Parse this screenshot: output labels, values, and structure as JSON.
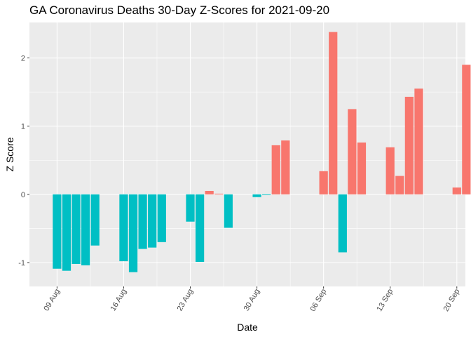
{
  "chart_data": {
    "type": "bar",
    "title": "GA Coronavirus Deaths 30-Day Z-Scores for 2021-09-20",
    "xlabel": "Date",
    "ylabel": "Z Score",
    "ylim": [
      -1.35,
      2.52
    ],
    "yticks": [
      -1,
      0,
      1,
      2
    ],
    "ytick_labels": [
      "-1",
      "0",
      "1",
      "2"
    ],
    "xlim_days": [
      -2.9,
      42.9
    ],
    "xtick_days": [
      0,
      7,
      14,
      21,
      28,
      35,
      42
    ],
    "xtick_labels": [
      "09 Aug",
      "16 Aug",
      "23 Aug",
      "30 Aug",
      "06 Sep",
      "13 Sep",
      "20 Sep"
    ],
    "x_origin": "2021-08-09",
    "colors": {
      "positive": "#F8766D",
      "negative": "#00BFC4",
      "panel": "#EBEBEB",
      "grid": "#FFFFFF"
    },
    "grid": true,
    "legend": "none",
    "series": [
      {
        "name": "Z Score",
        "days": [
          0,
          1,
          2,
          3,
          4,
          7,
          8,
          9,
          10,
          11,
          14,
          15,
          16,
          17,
          18,
          21,
          22,
          23,
          24,
          28,
          29,
          30,
          31,
          32,
          35,
          36,
          37,
          38,
          42,
          43
        ],
        "values": [
          -1.09,
          -1.12,
          -1.02,
          -1.04,
          -0.75,
          -0.98,
          -1.14,
          -0.8,
          -0.78,
          -0.7,
          -0.4,
          -0.99,
          0.05,
          0.01,
          -0.49,
          -0.04,
          -0.01,
          0.72,
          0.79,
          0.34,
          2.38,
          -0.85,
          1.25,
          0.76,
          0.69,
          0.27,
          1.43,
          1.55,
          0.1,
          1.9
        ]
      }
    ]
  }
}
